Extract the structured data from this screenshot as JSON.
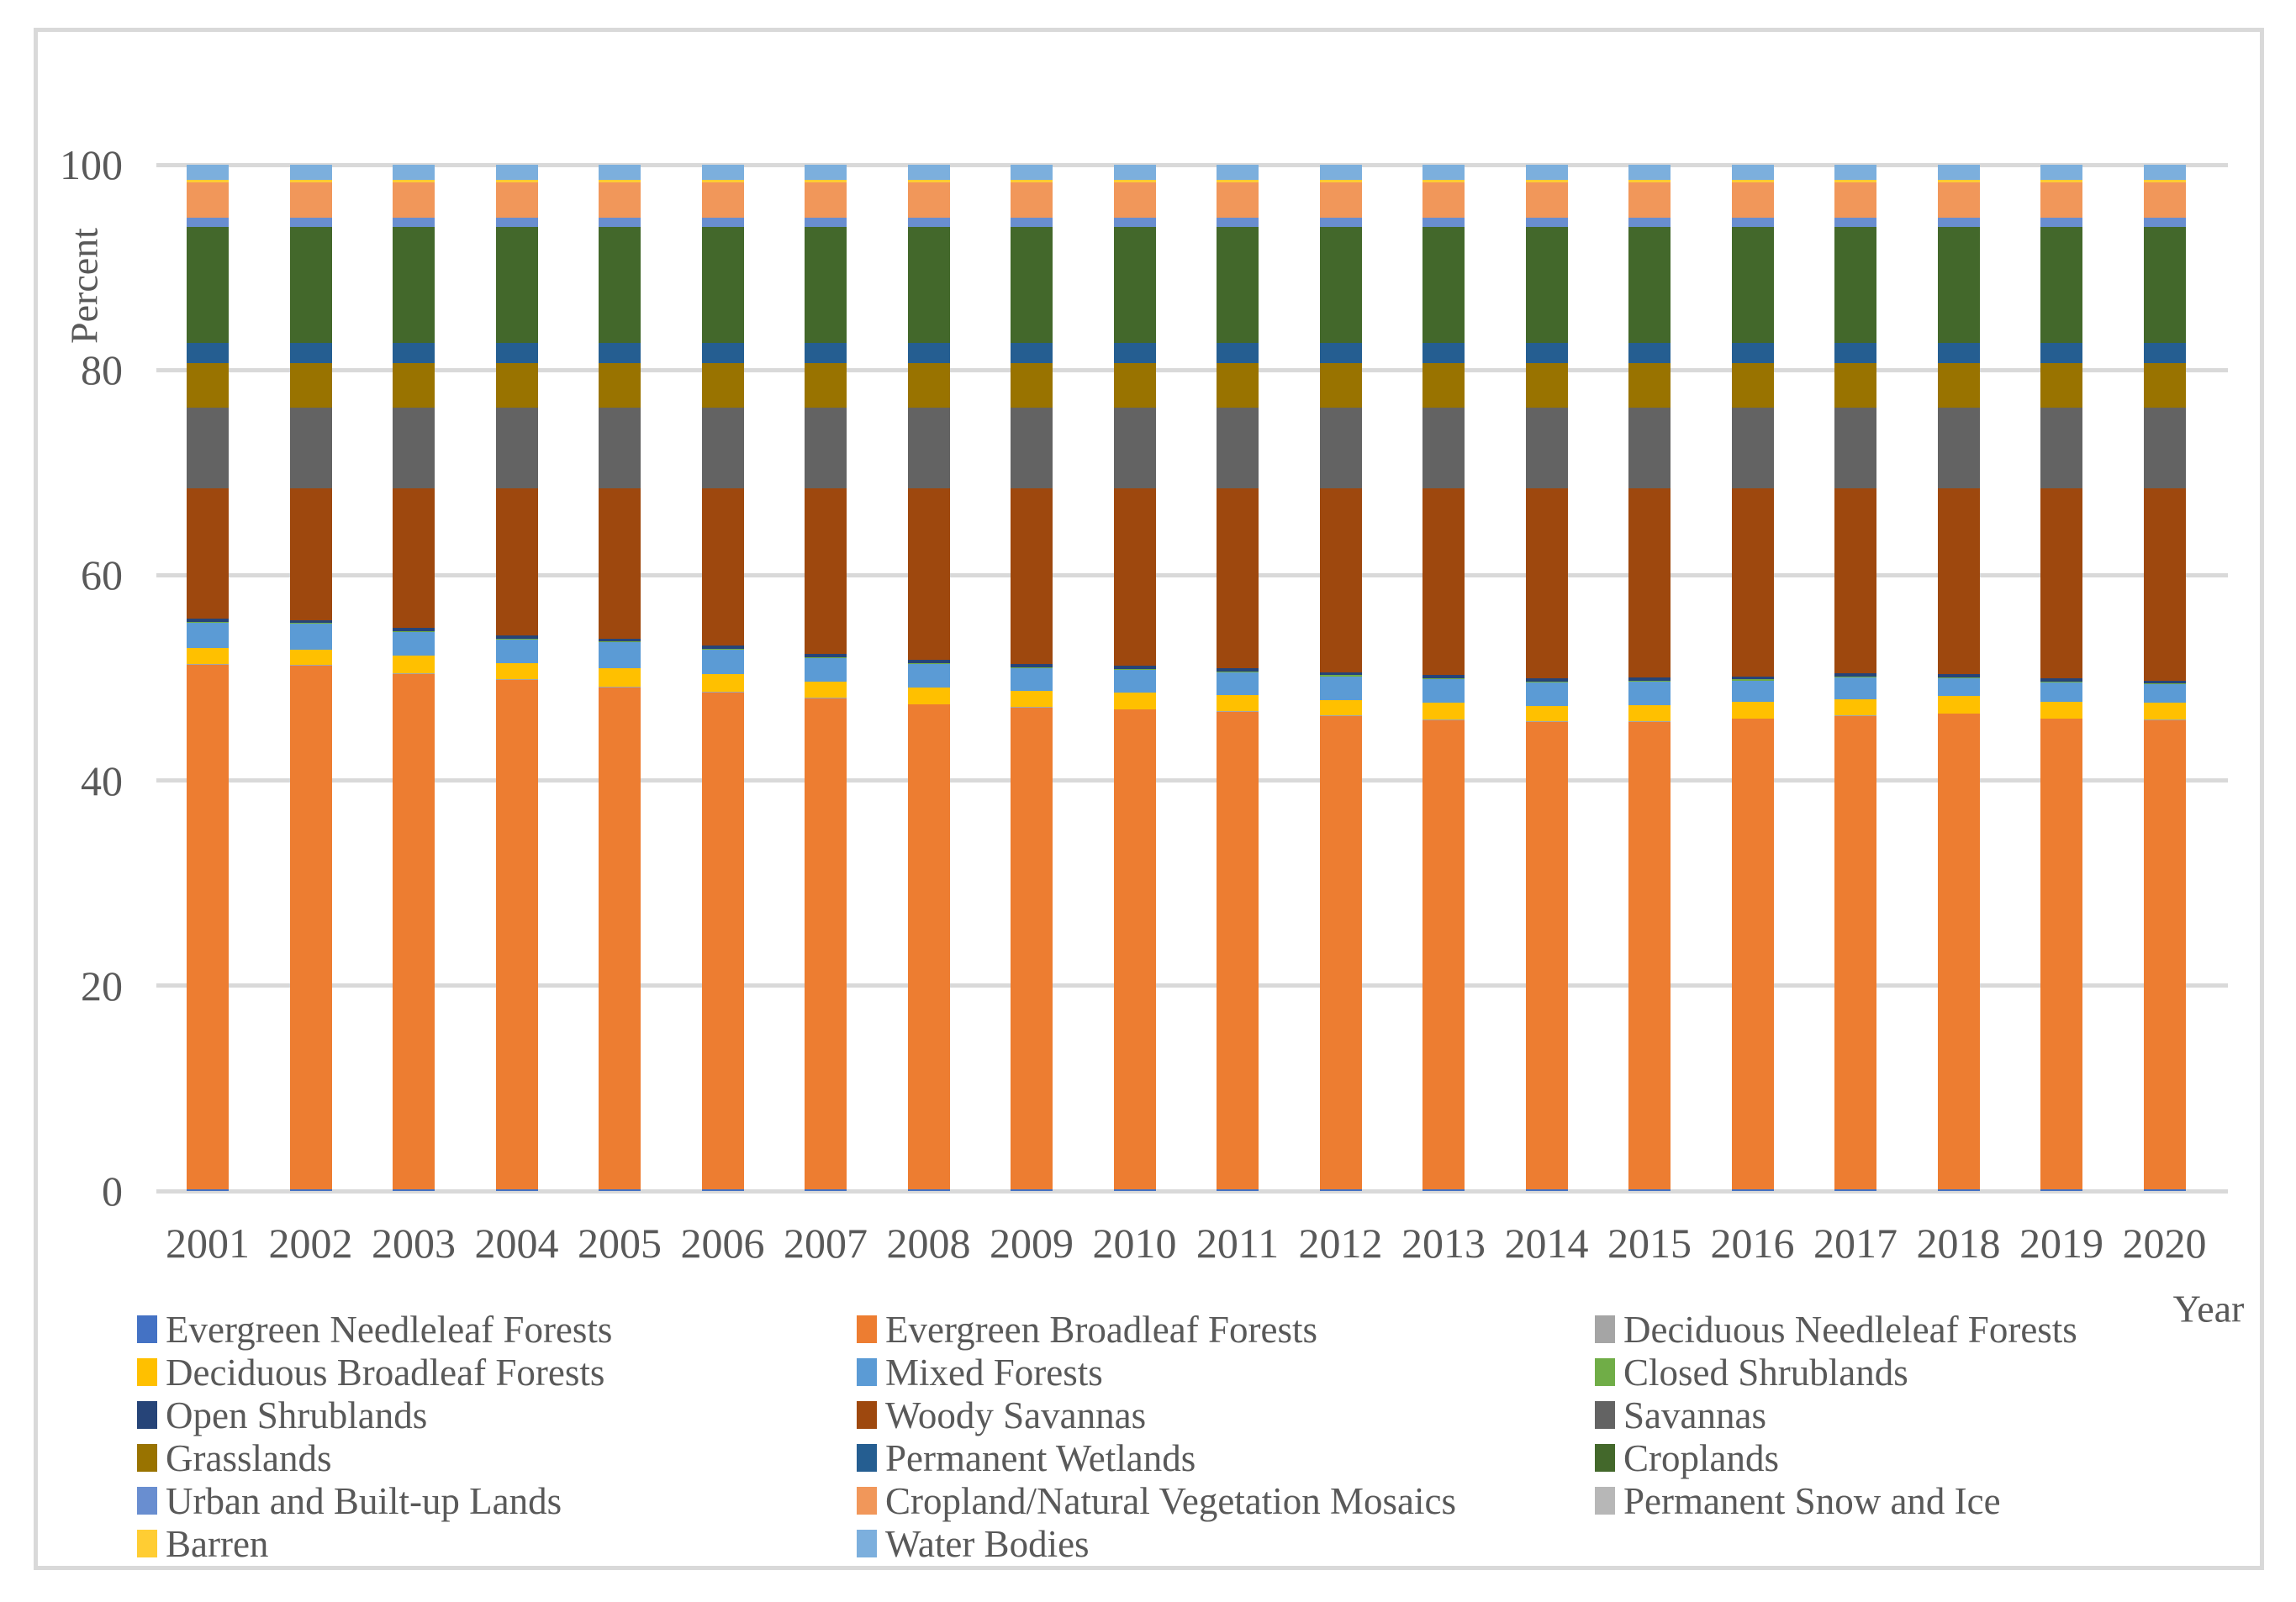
{
  "chart_data": {
    "type": "bar",
    "stacked": true,
    "title": "",
    "xlabel": "Year",
    "ylabel": "Percent",
    "ylim": [
      0,
      100
    ],
    "y_ticks": [
      0,
      20,
      40,
      60,
      80,
      100
    ],
    "grid": "horizontal",
    "gridline_color": "#D9D9D9",
    "axis_text_color": "#595959",
    "frame_border_color": "#D9D9D9",
    "legend_position": "bottom",
    "categories": [
      "2001",
      "2002",
      "2003",
      "2004",
      "2005",
      "2006",
      "2007",
      "2008",
      "2009",
      "2010",
      "2011",
      "2012",
      "2013",
      "2014",
      "2015",
      "2016",
      "2017",
      "2018",
      "2019",
      "2020"
    ],
    "series": [
      {
        "name": "Evergreen Needleleaf Forests",
        "color": "#4472C4",
        "values": [
          0.2,
          0.2,
          0.2,
          0.2,
          0.2,
          0.2,
          0.2,
          0.2,
          0.2,
          0.2,
          0.2,
          0.2,
          0.2,
          0.2,
          0.2,
          0.2,
          0.2,
          0.2,
          0.2,
          0.2
        ]
      },
      {
        "name": "Evergreen Broadleaf Forests",
        "color": "#ED7D31",
        "values": [
          51.1,
          51.0,
          50.2,
          49.6,
          48.9,
          48.4,
          47.8,
          47.2,
          46.9,
          46.7,
          46.5,
          46.1,
          45.7,
          45.5,
          45.5,
          45.8,
          46.1,
          46.3,
          45.8,
          45.7
        ]
      },
      {
        "name": "Deciduous Needleleaf Forests",
        "color": "#A5A5A5",
        "values": [
          0.05,
          0.05,
          0.05,
          0.05,
          0.05,
          0.05,
          0.05,
          0.05,
          0.05,
          0.05,
          0.05,
          0.05,
          0.05,
          0.05,
          0.05,
          0.05,
          0.05,
          0.05,
          0.05,
          0.05
        ]
      },
      {
        "name": "Deciduous Broadleaf Forests",
        "color": "#FFC000",
        "values": [
          1.6,
          1.5,
          1.7,
          1.6,
          1.8,
          1.7,
          1.6,
          1.6,
          1.6,
          1.6,
          1.6,
          1.5,
          1.6,
          1.5,
          1.6,
          1.6,
          1.6,
          1.7,
          1.6,
          1.6
        ]
      },
      {
        "name": "Mixed Forests",
        "color": "#5B9BD5",
        "values": [
          2.4,
          2.5,
          2.3,
          2.3,
          2.5,
          2.4,
          2.3,
          2.3,
          2.2,
          2.2,
          2.2,
          2.3,
          2.3,
          2.3,
          2.3,
          2.1,
          2.1,
          1.7,
          1.9,
          1.8
        ]
      },
      {
        "name": "Closed Shrublands",
        "color": "#70AD47",
        "values": [
          0.1,
          0.1,
          0.1,
          0.1,
          0.1,
          0.1,
          0.1,
          0.1,
          0.1,
          0.1,
          0.1,
          0.1,
          0.1,
          0.1,
          0.1,
          0.1,
          0.1,
          0.1,
          0.1,
          0.1
        ]
      },
      {
        "name": "Open Shrublands",
        "color": "#264478",
        "values": [
          0.3,
          0.3,
          0.3,
          0.3,
          0.3,
          0.3,
          0.3,
          0.3,
          0.3,
          0.3,
          0.3,
          0.3,
          0.3,
          0.3,
          0.3,
          0.3,
          0.3,
          0.3,
          0.3,
          0.3
        ]
      },
      {
        "name": "Woody Savannas",
        "color": "#9E480E",
        "values": [
          12.7,
          12.8,
          13.6,
          14.3,
          14.6,
          15.3,
          16.1,
          16.7,
          17.1,
          17.3,
          17.5,
          17.9,
          18.2,
          18.5,
          18.4,
          18.3,
          18.0,
          18.1,
          18.5,
          18.7
        ]
      },
      {
        "name": "Savannas",
        "color": "#636363",
        "values": [
          7.9,
          7.9,
          7.9,
          7.9,
          7.9,
          7.9,
          7.9,
          7.9,
          7.9,
          7.9,
          7.9,
          7.9,
          7.9,
          7.9,
          7.9,
          7.9,
          7.9,
          7.9,
          7.9,
          7.9
        ]
      },
      {
        "name": "Grasslands",
        "color": "#997300",
        "values": [
          4.3,
          4.3,
          4.3,
          4.3,
          4.3,
          4.3,
          4.3,
          4.3,
          4.3,
          4.3,
          4.3,
          4.3,
          4.3,
          4.3,
          4.3,
          4.3,
          4.3,
          4.3,
          4.3,
          4.3
        ]
      },
      {
        "name": "Permanent Wetlands",
        "color": "#255E91",
        "values": [
          2.0,
          2.0,
          2.0,
          2.0,
          2.0,
          2.0,
          2.0,
          2.0,
          2.0,
          2.0,
          2.0,
          2.0,
          2.0,
          2.0,
          2.0,
          2.0,
          2.0,
          2.0,
          2.0,
          2.0
        ]
      },
      {
        "name": "Croplands",
        "color": "#43682B",
        "values": [
          11.3,
          11.3,
          11.3,
          11.3,
          11.3,
          11.3,
          11.3,
          11.3,
          11.3,
          11.3,
          11.3,
          11.3,
          11.3,
          11.3,
          11.3,
          11.3,
          11.3,
          11.3,
          11.3,
          11.3
        ]
      },
      {
        "name": "Urban and Built-up Lands",
        "color": "#698ED0",
        "values": [
          0.9,
          0.9,
          0.9,
          0.9,
          0.9,
          0.9,
          0.9,
          0.9,
          0.9,
          0.9,
          0.9,
          0.9,
          0.9,
          0.9,
          0.9,
          0.9,
          0.9,
          0.9,
          0.9,
          0.9
        ]
      },
      {
        "name": "Cropland/Natural Vegetation Mosaics",
        "color": "#F1975A",
        "values": [
          3.4,
          3.4,
          3.4,
          3.4,
          3.4,
          3.4,
          3.4,
          3.4,
          3.4,
          3.4,
          3.4,
          3.4,
          3.4,
          3.4,
          3.4,
          3.4,
          3.4,
          3.4,
          3.4,
          3.4
        ]
      },
      {
        "name": "Permanent Snow and Ice",
        "color": "#B7B7B7",
        "values": [
          0.05,
          0.05,
          0.05,
          0.05,
          0.05,
          0.05,
          0.05,
          0.05,
          0.05,
          0.05,
          0.05,
          0.05,
          0.05,
          0.05,
          0.05,
          0.05,
          0.05,
          0.05,
          0.05,
          0.05
        ]
      },
      {
        "name": "Barren",
        "color": "#FFCD33",
        "values": [
          0.2,
          0.2,
          0.2,
          0.2,
          0.2,
          0.2,
          0.2,
          0.2,
          0.2,
          0.2,
          0.2,
          0.2,
          0.2,
          0.2,
          0.2,
          0.2,
          0.2,
          0.2,
          0.2,
          0.2
        ]
      },
      {
        "name": "Water Bodies",
        "color": "#7CAFDD",
        "values": [
          1.5,
          1.5,
          1.5,
          1.5,
          1.5,
          1.5,
          1.5,
          1.5,
          1.5,
          1.5,
          1.5,
          1.5,
          1.5,
          1.5,
          1.5,
          1.5,
          1.5,
          1.5,
          1.5,
          1.5
        ]
      }
    ]
  }
}
